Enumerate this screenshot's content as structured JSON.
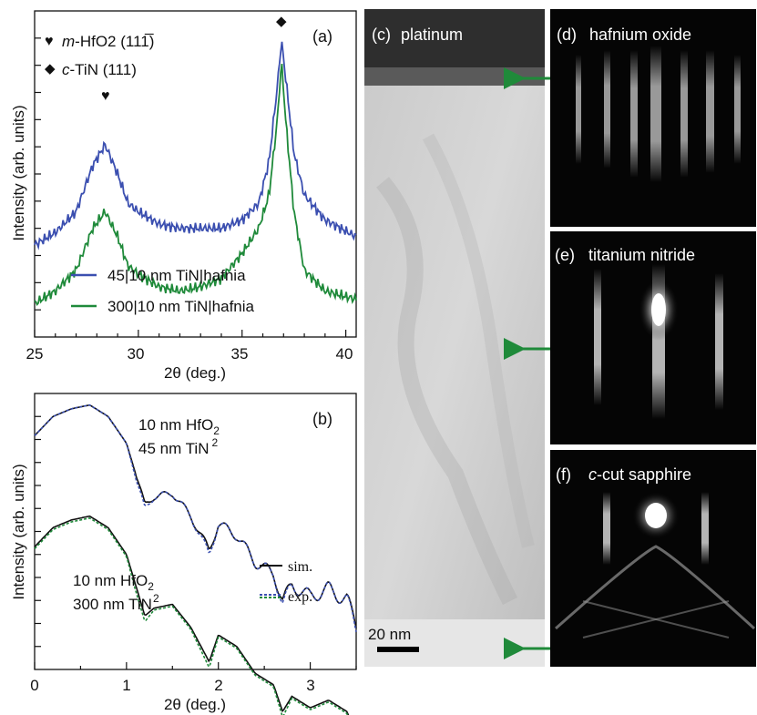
{
  "panel_a": {
    "label": "(a)",
    "legend_peak1": "m-HfO2 (11",
    "legend_peak1_italic": "m",
    "legend_peak1_rest": "-HfO2 (111̅)",
    "legend_peak2_italic": "c",
    "legend_peak2_rest": "-TiN (111)",
    "series_45": "45|10 nm TiN|hafnia",
    "series_300": "300|10 nm TiN|hafnia",
    "ylabel": "Intensity (arb. units)",
    "xlabel": "2θ (deg.)",
    "xticks": [
      "25",
      "30",
      "35",
      "40"
    ]
  },
  "panel_b": {
    "label": "(b)",
    "ylabel": "Intensity (arb. units)",
    "xlabel": "2θ (deg.)",
    "xticks": [
      "0",
      "1",
      "2",
      "3"
    ],
    "annot_top_1": "10 nm HfO",
    "annot_top_2": "45 nm TiN",
    "annot_bot_1": "10 nm HfO",
    "annot_bot_2": "300 nm TiN",
    "sub2": "2",
    "legend_sim": "sim.",
    "legend_exp": "exp."
  },
  "panel_c": {
    "label": "(c)",
    "title": "platinum",
    "scalebar": "20 nm"
  },
  "panel_d": {
    "label": "(d)",
    "title": "hafnium oxide"
  },
  "panel_e": {
    "label": "(e)",
    "title": "titanium nitride"
  },
  "panel_f": {
    "label": "(f)",
    "title_italic": "c",
    "title_rest": "-cut sapphire"
  },
  "colors": {
    "blue": "#3b4fb0",
    "green": "#1f8a3a",
    "arrow": "#1f8a3a"
  },
  "chart_data": [
    {
      "type": "line",
      "xlabel": "2θ (deg.)",
      "ylabel": "Intensity (arb. units)",
      "xlim": [
        25,
        40.5
      ],
      "series": [
        {
          "name": "45|10 nm TiN|hafnia",
          "x": [
            25,
            26,
            27,
            27.8,
            28.4,
            29,
            29.5,
            30,
            31,
            32,
            33,
            34,
            35,
            35.8,
            36.3,
            36.7,
            36.9,
            37.1,
            37.5,
            38,
            39,
            40.5
          ],
          "y": [
            2.2,
            2.5,
            3.0,
            4.1,
            4.6,
            3.9,
            3.2,
            3.0,
            2.7,
            2.6,
            2.6,
            2.6,
            2.8,
            3.2,
            4.2,
            6.0,
            7.1,
            6.2,
            4.4,
            3.4,
            2.8,
            2.4
          ]
        },
        {
          "name": "300|10 nm TiN|hafnia",
          "x": [
            25,
            26,
            27,
            27.8,
            28.4,
            29,
            29.5,
            30,
            31,
            32,
            33,
            34,
            35,
            35.8,
            36.3,
            36.7,
            36.9,
            37.1,
            37.5,
            38,
            39,
            40.5
          ],
          "y": [
            0.8,
            1.1,
            1.6,
            2.6,
            3.0,
            2.4,
            1.7,
            1.5,
            1.2,
            1.1,
            1.2,
            1.4,
            2.0,
            2.6,
            3.4,
            5.2,
            6.6,
            5.2,
            3.0,
            1.6,
            1.1,
            0.9
          ]
        }
      ]
    },
    {
      "type": "line",
      "xlabel": "2θ (deg.)",
      "ylabel": "Intensity (arb. units)",
      "xlim": [
        0,
        3.5
      ],
      "xticks": [
        0,
        1,
        2,
        3
      ],
      "series": [
        {
          "name": "sim.",
          "x": [
            0,
            0.2,
            0.4,
            0.6,
            0.8,
            1.0,
            1.1,
            1.2,
            1.3,
            1.5,
            1.7,
            1.9,
            2.0,
            2.2,
            2.4,
            2.6,
            2.7,
            2.8,
            3.0,
            3.2,
            3.4,
            3.5
          ],
          "y": [
            5.8,
            6.3,
            6.5,
            6.6,
            6.3,
            5.6,
            4.8,
            4.0,
            4.2,
            4.3,
            3.7,
            2.8,
            3.5,
            3.2,
            2.5,
            2.2,
            1.5,
            1.9,
            1.6,
            1.8,
            1.5,
            0.9
          ]
        },
        {
          "name": "exp.",
          "x": [
            0,
            0.2,
            0.4,
            0.6,
            0.8,
            1.0,
            1.1,
            1.2,
            1.3,
            1.5,
            1.7,
            1.9,
            2.0,
            2.2,
            2.4,
            2.6,
            2.7,
            2.8,
            3.0,
            3.2,
            3.4,
            3.5
          ],
          "y": [
            5.8,
            6.3,
            6.5,
            6.6,
            6.3,
            5.6,
            4.7,
            3.9,
            4.2,
            4.3,
            3.7,
            2.7,
            3.5,
            3.2,
            2.5,
            2.2,
            1.4,
            1.9,
            1.6,
            1.8,
            1.5,
            0.8
          ]
        }
      ]
    }
  ]
}
